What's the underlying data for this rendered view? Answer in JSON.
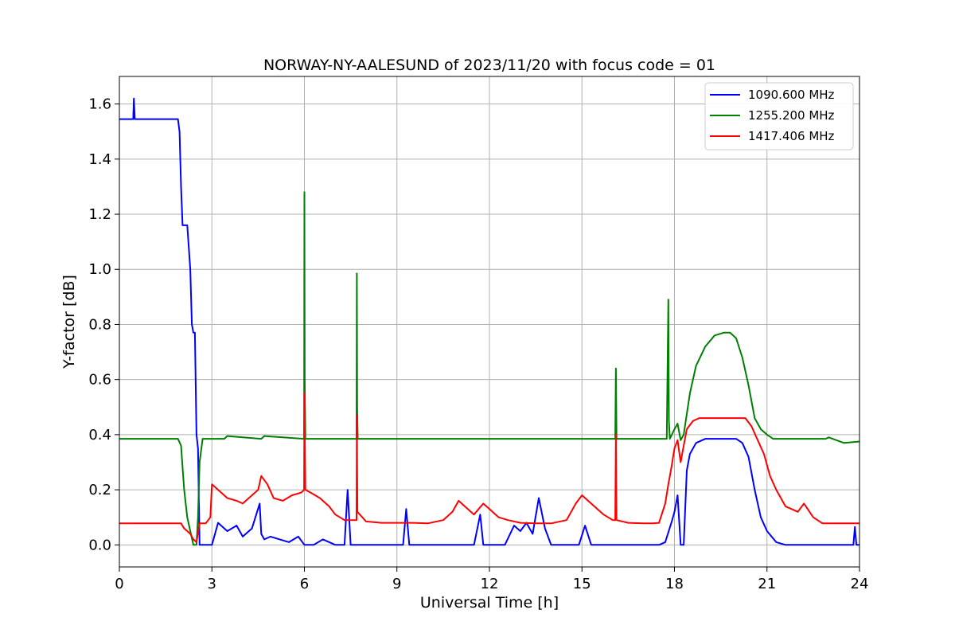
{
  "chart_data": {
    "type": "line",
    "title": "NORWAY-NY-AALESUND of 2023/11/20 with focus code = 01",
    "xlabel": "Universal Time [h]",
    "ylabel": "Y-factor [dB]",
    "xlim": [
      0,
      24
    ],
    "ylim": [
      -0.08,
      1.7
    ],
    "xticks": [
      "0",
      "3",
      "6",
      "9",
      "12",
      "15",
      "18",
      "21",
      "24"
    ],
    "yticks": [
      "0.0",
      "0.2",
      "0.4",
      "0.6",
      "0.8",
      "1.0",
      "1.2",
      "1.4",
      "1.6"
    ],
    "grid": true,
    "legend_position": "top-right",
    "series": [
      {
        "name": "1090.600 MHz",
        "color": "#0000ff",
        "x": [
          0,
          0.45,
          0.47,
          0.5,
          0.52,
          0.55,
          1.9,
          1.95,
          2.0,
          2.05,
          2.1,
          2.15,
          2.2,
          2.3,
          2.35,
          2.4,
          2.45,
          2.5,
          2.55,
          2.6,
          2.8,
          3.0,
          3.2,
          3.5,
          3.8,
          4.0,
          4.3,
          4.55,
          4.6,
          4.7,
          4.9,
          5.2,
          5.5,
          5.8,
          6.0,
          6.3,
          6.6,
          7.0,
          7.3,
          7.4,
          7.5,
          7.8,
          8.5,
          9.2,
          9.3,
          9.4,
          10.5,
          11.0,
          11.5,
          11.7,
          11.8,
          12.5,
          12.8,
          13.0,
          13.2,
          13.4,
          13.6,
          13.8,
          14.0,
          14.5,
          14.9,
          15.1,
          15.3,
          15.5,
          16.0,
          16.5,
          17.0,
          17.5,
          17.7,
          17.9,
          18.0,
          18.1,
          18.2,
          18.3,
          18.4,
          18.5,
          18.7,
          19.0,
          19.5,
          20.0,
          20.2,
          20.4,
          20.6,
          20.8,
          21.0,
          21.3,
          21.6,
          22.0,
          23.0,
          23.8,
          23.85,
          23.9,
          24
        ],
        "y": [
          1.545,
          1.545,
          1.62,
          1.545,
          1.545,
          1.545,
          1.545,
          1.5,
          1.3,
          1.16,
          1.16,
          1.16,
          1.16,
          1.0,
          0.8,
          0.77,
          0.77,
          0.4,
          0.35,
          0.0,
          0.0,
          0.0,
          0.08,
          0.05,
          0.07,
          0.03,
          0.06,
          0.15,
          0.04,
          0.02,
          0.03,
          0.02,
          0.01,
          0.03,
          0.0,
          0.0,
          0.02,
          0.0,
          0.0,
          0.2,
          0.0,
          0.0,
          0.0,
          0.0,
          0.13,
          0.0,
          0.0,
          0.0,
          0.0,
          0.11,
          0.0,
          0.0,
          0.07,
          0.05,
          0.08,
          0.04,
          0.17,
          0.06,
          0.0,
          0.0,
          0.0,
          0.07,
          0.0,
          0.0,
          0.0,
          0.0,
          0.0,
          0.0,
          0.01,
          0.08,
          0.12,
          0.18,
          0.0,
          0.0,
          0.27,
          0.33,
          0.37,
          0.385,
          0.385,
          0.385,
          0.37,
          0.32,
          0.2,
          0.1,
          0.05,
          0.01,
          0.0,
          0.0,
          0.0,
          0.0,
          0.065,
          0.0,
          0.0
        ]
      },
      {
        "name": "1255.200 MHz",
        "color": "#008000",
        "x": [
          0,
          1.9,
          2.0,
          2.1,
          2.2,
          2.3,
          2.4,
          2.5,
          2.55,
          2.6,
          2.7,
          3.0,
          3.4,
          3.5,
          4.6,
          4.7,
          5.99,
          6.0,
          6.01,
          6.03,
          7.69,
          7.7,
          7.71,
          7.73,
          8.8,
          12.0,
          15.2,
          16.08,
          16.1,
          16.12,
          17.75,
          17.8,
          17.82,
          17.85,
          18.0,
          18.1,
          18.2,
          18.3,
          18.5,
          18.7,
          19.0,
          19.3,
          19.6,
          19.8,
          20.0,
          20.2,
          20.4,
          20.6,
          20.8,
          21.0,
          21.2,
          22.0,
          22.9,
          23.0,
          23.5,
          24
        ],
        "y": [
          0.385,
          0.385,
          0.36,
          0.2,
          0.1,
          0.05,
          0.0,
          0.0,
          0.1,
          0.3,
          0.385,
          0.385,
          0.385,
          0.395,
          0.385,
          0.395,
          0.385,
          1.28,
          0.6,
          0.385,
          0.385,
          0.985,
          0.5,
          0.385,
          0.385,
          0.385,
          0.385,
          0.385,
          0.64,
          0.385,
          0.385,
          0.89,
          0.45,
          0.385,
          0.42,
          0.44,
          0.38,
          0.4,
          0.55,
          0.65,
          0.72,
          0.76,
          0.77,
          0.77,
          0.75,
          0.68,
          0.58,
          0.46,
          0.42,
          0.4,
          0.385,
          0.385,
          0.385,
          0.39,
          0.37,
          0.375
        ]
      },
      {
        "name": "1417.406 MHz",
        "color": "#ff0000",
        "x": [
          0,
          2.0,
          2.1,
          2.2,
          2.3,
          2.4,
          2.5,
          2.6,
          2.8,
          2.95,
          3.0,
          3.2,
          3.5,
          3.8,
          4.0,
          4.3,
          4.5,
          4.6,
          4.8,
          5.0,
          5.3,
          5.6,
          5.9,
          5.99,
          6.0,
          6.03,
          6.2,
          6.5,
          6.8,
          7.0,
          7.3,
          7.5,
          7.69,
          7.7,
          7.72,
          8.0,
          8.5,
          9.0,
          9.5,
          10.0,
          10.5,
          10.8,
          11.0,
          11.2,
          11.5,
          11.8,
          12.0,
          12.3,
          12.6,
          13.0,
          13.5,
          14.0,
          14.5,
          14.8,
          15.0,
          15.2,
          15.4,
          15.7,
          16.0,
          16.08,
          16.1,
          16.12,
          16.5,
          17.0,
          17.3,
          17.5,
          17.7,
          17.8,
          17.9,
          18.0,
          18.1,
          18.2,
          18.3,
          18.4,
          18.6,
          18.8,
          19.0,
          19.5,
          20.0,
          20.3,
          20.5,
          20.7,
          20.9,
          21.1,
          21.3,
          21.6,
          22.0,
          22.2,
          22.5,
          22.8,
          23.0,
          24
        ],
        "y": [
          0.078,
          0.078,
          0.06,
          0.05,
          0.04,
          0.02,
          0.01,
          0.078,
          0.078,
          0.1,
          0.22,
          0.2,
          0.17,
          0.16,
          0.15,
          0.18,
          0.2,
          0.25,
          0.22,
          0.17,
          0.16,
          0.18,
          0.19,
          0.2,
          0.55,
          0.2,
          0.19,
          0.17,
          0.14,
          0.11,
          0.09,
          0.09,
          0.09,
          0.47,
          0.12,
          0.085,
          0.08,
          0.08,
          0.08,
          0.078,
          0.09,
          0.12,
          0.16,
          0.14,
          0.11,
          0.15,
          0.13,
          0.1,
          0.09,
          0.08,
          0.078,
          0.078,
          0.09,
          0.15,
          0.18,
          0.16,
          0.14,
          0.11,
          0.09,
          0.09,
          0.4,
          0.09,
          0.08,
          0.078,
          0.078,
          0.08,
          0.15,
          0.22,
          0.28,
          0.35,
          0.38,
          0.3,
          0.36,
          0.42,
          0.45,
          0.46,
          0.46,
          0.46,
          0.46,
          0.46,
          0.43,
          0.38,
          0.33,
          0.25,
          0.2,
          0.14,
          0.12,
          0.15,
          0.1,
          0.078,
          0.078,
          0.078
        ]
      }
    ]
  }
}
